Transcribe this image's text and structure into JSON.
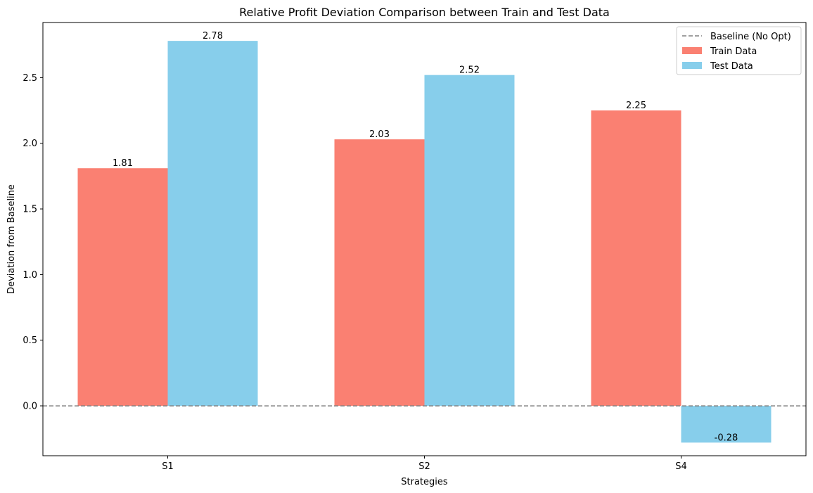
{
  "chart_data": {
    "type": "bar",
    "title": "Relative Profit Deviation Comparison between Train and Test Data",
    "xlabel": "Strategies",
    "ylabel": "Deviation from Baseline",
    "categories": [
      "S1",
      "S2",
      "S4"
    ],
    "series": [
      {
        "name": "Train Data",
        "color": "#fa8072",
        "values": [
          1.81,
          2.03,
          2.25
        ]
      },
      {
        "name": "Test Data",
        "color": "#87ceeb",
        "values": [
          2.78,
          2.52,
          -0.28
        ]
      }
    ],
    "data_labels": {
      "Train Data": [
        "1.81",
        "2.03",
        "2.25"
      ],
      "Test Data": [
        "2.78",
        "2.52",
        "-0.28"
      ]
    },
    "baseline": {
      "name": "Baseline (No Opt)",
      "value": 0.0,
      "color": "#808080",
      "style": "dashed"
    },
    "ylim": [
      -0.38,
      2.92
    ],
    "yticks": [
      0.0,
      0.5,
      1.0,
      1.5,
      2.0,
      2.5
    ],
    "ytick_labels": [
      "0.0",
      "0.5",
      "1.0",
      "1.5",
      "2.0",
      "2.5"
    ],
    "grid": false,
    "legend_position": "top-right",
    "legend": [
      "Baseline (No Opt)",
      "Train Data",
      "Test Data"
    ]
  }
}
